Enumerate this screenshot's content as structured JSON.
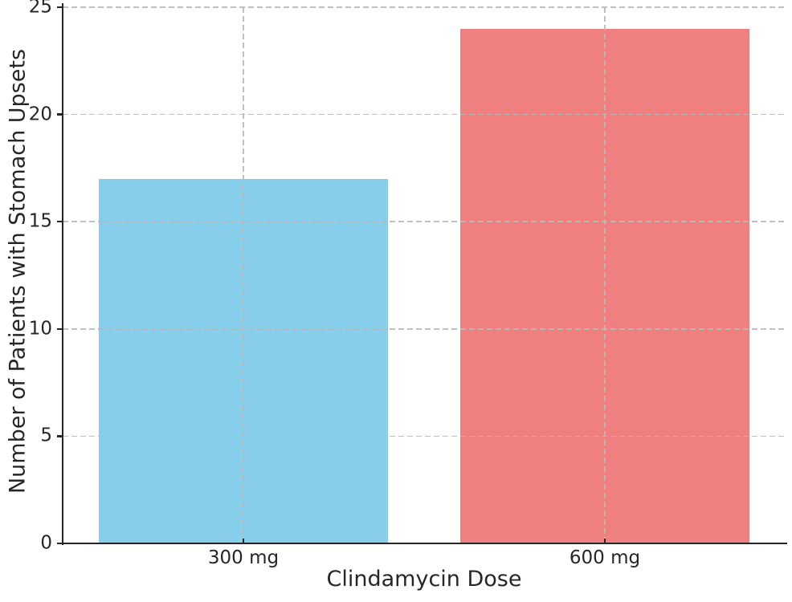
{
  "chart_data": {
    "type": "bar",
    "title": "",
    "categories": [
      "300 mg",
      "600 mg"
    ],
    "values": [
      17,
      24
    ],
    "bar_colors": [
      "#87CEEB",
      "#F08080"
    ],
    "bar_width_fraction": 0.8,
    "xlabel": "Clindamycin Dose",
    "ylabel": "Number of Patients with Stomach Upsets",
    "ylim": [
      0,
      25
    ],
    "yticks": [
      0,
      5,
      10,
      15,
      20,
      25
    ],
    "xticklabels": [
      "300 mg",
      "600 mg"
    ],
    "grid": "dashed gray, horizontal and vertical, drawn above bars",
    "legend": "none"
  }
}
